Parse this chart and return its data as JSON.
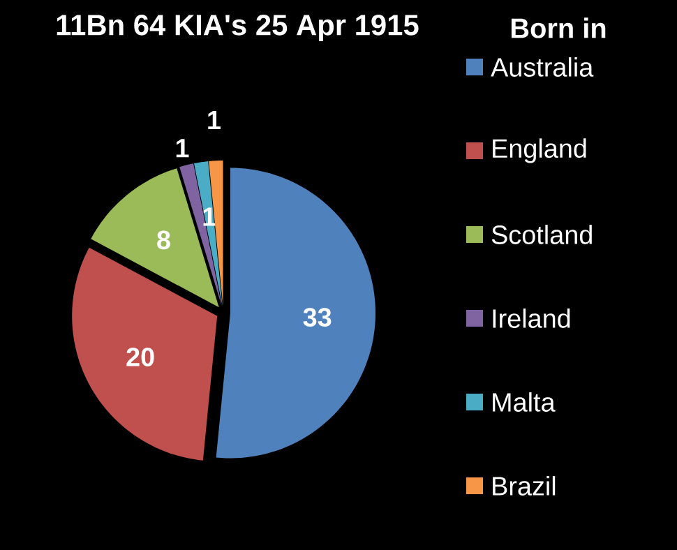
{
  "chart_data": {
    "type": "pie",
    "title": "11Bn 64 KIA's 25 Apr 1915",
    "legend_title": "Born in",
    "categories": [
      "Australia",
      "England",
      "Scotland",
      "Ireland",
      "Malta",
      "Brazil"
    ],
    "values": [
      33,
      20,
      8,
      1,
      1,
      1
    ],
    "colors": [
      "#4f81bd",
      "#c0504d",
      "#9bbb59",
      "#8064a2",
      "#4bacc6",
      "#f79646"
    ],
    "data_labels": true,
    "legend": "right"
  }
}
